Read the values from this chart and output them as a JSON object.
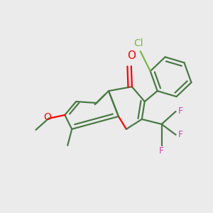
{
  "background_color": "#ebebeb",
  "bond_color": "#4a7a45",
  "oxygen_color": "#ff0000",
  "chlorine_color": "#7ab648",
  "fluorine_color": "#cc44aa",
  "line_width": 1.6,
  "figsize": [
    3.0,
    3.0
  ],
  "dpi": 100,
  "xlim": [
    0.0,
    1.0
  ],
  "ylim": [
    0.0,
    1.0
  ]
}
